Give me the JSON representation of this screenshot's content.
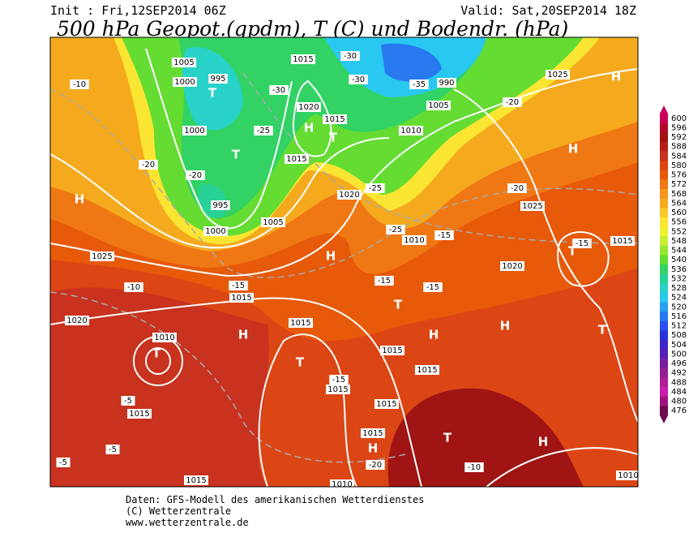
{
  "header": {
    "init": "Init : Fri,12SEP2014 06Z",
    "valid": "Valid: Sat,20SEP2014 18Z",
    "title": "500 hPa Geopot.(gpdm), T (C) und Bodendr. (hPa)"
  },
  "colorbar": {
    "labels": [
      600,
      596,
      592,
      588,
      584,
      580,
      576,
      572,
      568,
      564,
      560,
      556,
      552,
      548,
      544,
      540,
      536,
      532,
      528,
      524,
      520,
      516,
      512,
      508,
      504,
      500,
      496,
      492,
      488,
      484,
      480,
      476
    ],
    "colors": [
      "#c8005a",
      "#b40a2a",
      "#a01414",
      "#b41e14",
      "#c8321e",
      "#dc4614",
      "#e65a0a",
      "#f07814",
      "#f5961e",
      "#f5aa1e",
      "#fac828",
      "#fae632",
      "#f0f032",
      "#c8f032",
      "#96e632",
      "#64dc32",
      "#32d264",
      "#28d296",
      "#28d2c8",
      "#28c8f0",
      "#28a0f0",
      "#2878f0",
      "#2850f0",
      "#2832dc",
      "#3c28c8",
      "#5a1eb4",
      "#781ea0",
      "#961e96",
      "#b41e96",
      "#c81eaa",
      "#a0147d",
      "#6e0a50"
    ]
  },
  "map_labels": [
    "1005",
    "1000",
    "995",
    "T",
    "1015",
    "-30",
    "-30",
    "990",
    "1005",
    "-35",
    "1025",
    "H",
    "1020",
    "H",
    "1015",
    "T",
    "1010",
    "1000",
    "T",
    "1015",
    "H",
    "H",
    "995",
    "1000",
    "1005",
    "1020",
    "1025",
    "1025",
    "H",
    "T",
    "1020",
    "1015",
    "1010",
    "1015",
    "T",
    "H",
    "1020",
    "1010",
    "T",
    "1015",
    "H",
    "H",
    "T",
    "1015",
    "T",
    "1015",
    "1015",
    "1015",
    "1015",
    "1015",
    "T",
    "H",
    "H",
    "1015",
    "1010",
    "1010",
    "-20",
    "-20",
    "-10",
    "-10",
    "-15",
    "-15",
    "-15",
    "-15",
    "-5",
    "-5",
    "-5",
    "-10",
    "-20",
    "-25",
    "-30",
    "-25",
    "-20",
    "-20",
    "-15",
    "-15",
    "-25"
  ],
  "footer": [
    "Daten: GFS-Modell des amerikanischen Wetterdienstes",
    "(C) Wetterzentrale",
    "www.wetterzentrale.de"
  ]
}
